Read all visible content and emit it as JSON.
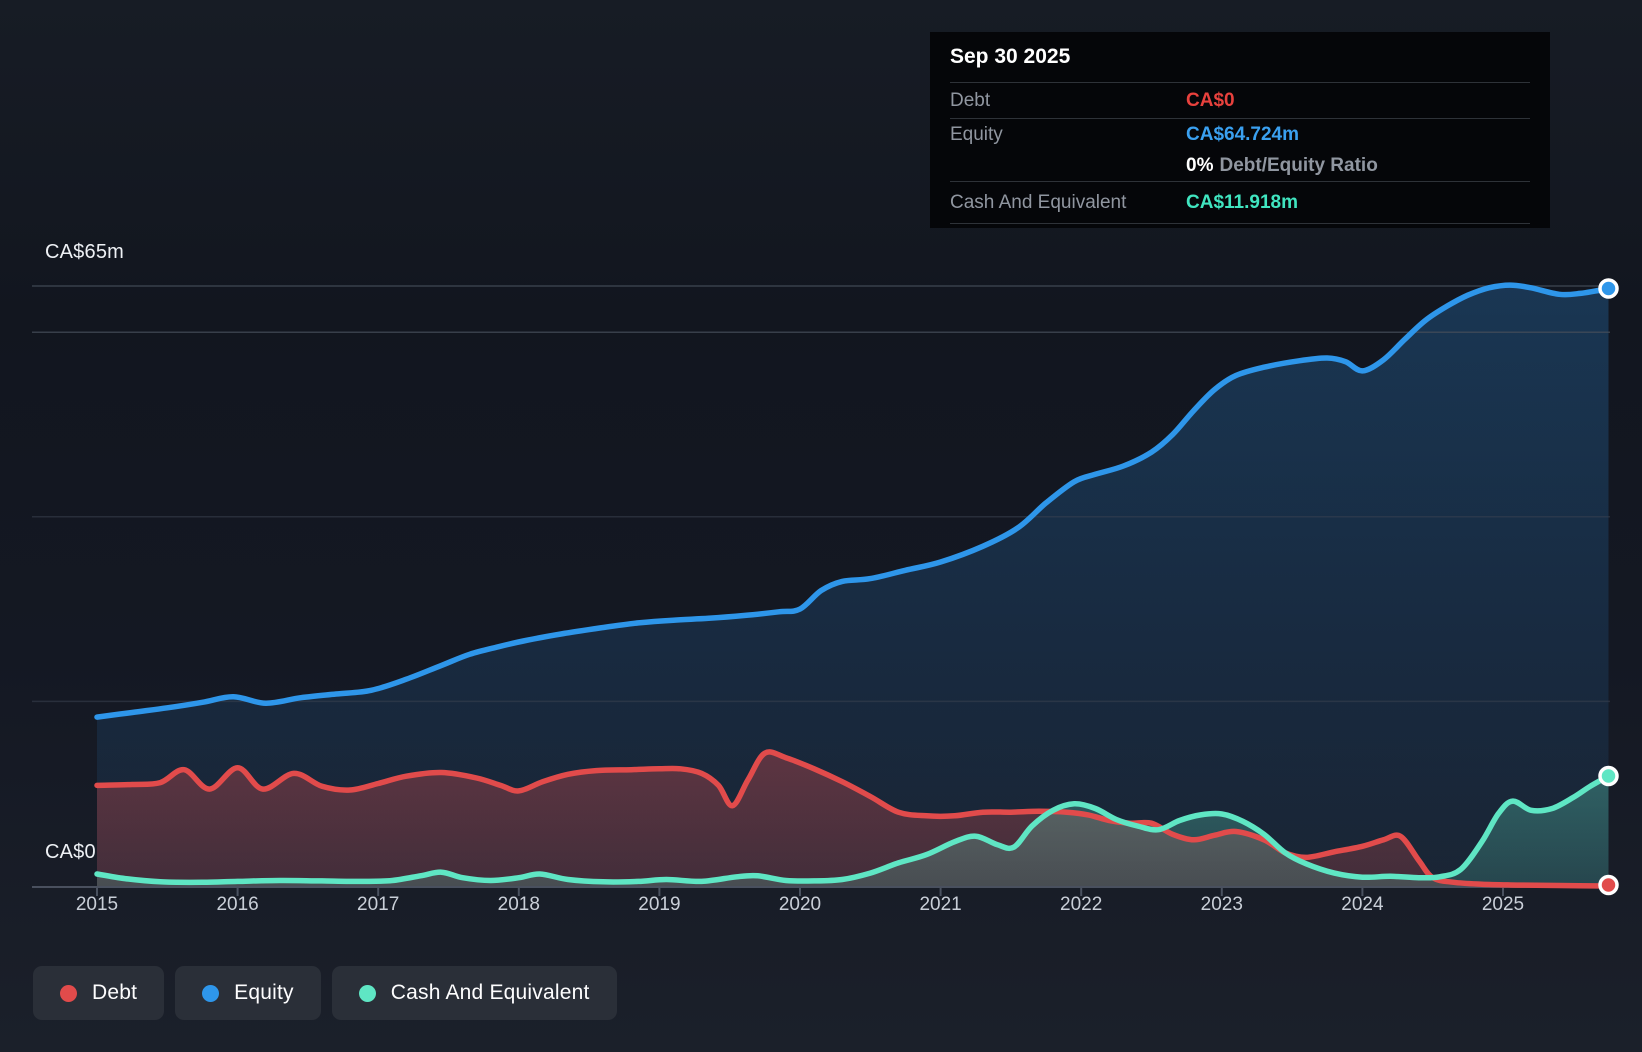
{
  "tooltip": {
    "date": "Sep 30 2025",
    "debt_label": "Debt",
    "debt_value": "CA$0",
    "equity_label": "Equity",
    "equity_value": "CA$64.724m",
    "ratio_value": "0%",
    "ratio_label": "Debt/Equity Ratio",
    "cash_label": "Cash And Equivalent",
    "cash_value": "CA$11.918m"
  },
  "y_axis": {
    "top_label": "CA$65m",
    "bottom_label": "CA$0"
  },
  "x_axis": {
    "years": [
      "2015",
      "2016",
      "2017",
      "2018",
      "2019",
      "2020",
      "2021",
      "2022",
      "2023",
      "2024",
      "2025"
    ]
  },
  "legend": [
    {
      "label": "Debt"
    },
    {
      "label": "Equity"
    },
    {
      "label": "Cash And Equivalent"
    }
  ],
  "colors": {
    "debt": "#e14b4b",
    "equity": "#2e96ea",
    "cash": "#5fe6c4",
    "tooltip_debt": "#e8413d",
    "tooltip_equity": "#3aa0f0",
    "tooltip_cash": "#40e5c0"
  },
  "chart_data": {
    "type": "area",
    "title": "Debt to Equity History",
    "x_unit": "year",
    "xlim": [
      2015,
      2025.75
    ],
    "ylim": [
      0,
      65
    ],
    "y_currency": "CA$m",
    "gridline_values": [
      65,
      60,
      40,
      20
    ],
    "legend_position": "bottom-left",
    "series": [
      {
        "name": "Equity",
        "color": "#2e96ea",
        "end_value_label": "CA$64.724m",
        "points": [
          [
            2015.0,
            18.3
          ],
          [
            2015.25,
            18.8
          ],
          [
            2015.5,
            19.3
          ],
          [
            2015.75,
            19.9
          ],
          [
            2015.97,
            20.5
          ],
          [
            2016.2,
            19.8
          ],
          [
            2016.45,
            20.4
          ],
          [
            2016.7,
            20.8
          ],
          [
            2016.95,
            21.2
          ],
          [
            2017.2,
            22.4
          ],
          [
            2017.45,
            23.9
          ],
          [
            2017.65,
            25.1
          ],
          [
            2017.85,
            25.9
          ],
          [
            2018.05,
            26.6
          ],
          [
            2018.3,
            27.3
          ],
          [
            2018.6,
            28.0
          ],
          [
            2018.85,
            28.5
          ],
          [
            2019.1,
            28.8
          ],
          [
            2019.35,
            29.0
          ],
          [
            2019.6,
            29.3
          ],
          [
            2019.85,
            29.7
          ],
          [
            2020.0,
            30.0
          ],
          [
            2020.15,
            32.0
          ],
          [
            2020.3,
            33.0
          ],
          [
            2020.5,
            33.3
          ],
          [
            2020.75,
            34.2
          ],
          [
            2021.0,
            35.1
          ],
          [
            2021.3,
            36.8
          ],
          [
            2021.55,
            38.8
          ],
          [
            2021.75,
            41.5
          ],
          [
            2021.95,
            43.8
          ],
          [
            2022.1,
            44.6
          ],
          [
            2022.3,
            45.5
          ],
          [
            2022.5,
            47.0
          ],
          [
            2022.65,
            48.9
          ],
          [
            2022.8,
            51.5
          ],
          [
            2022.95,
            53.8
          ],
          [
            2023.1,
            55.3
          ],
          [
            2023.3,
            56.2
          ],
          [
            2023.55,
            56.9
          ],
          [
            2023.75,
            57.2
          ],
          [
            2023.88,
            56.8
          ],
          [
            2024.0,
            55.8
          ],
          [
            2024.15,
            57.0
          ],
          [
            2024.3,
            59.2
          ],
          [
            2024.45,
            61.3
          ],
          [
            2024.6,
            62.8
          ],
          [
            2024.75,
            64.0
          ],
          [
            2024.9,
            64.8
          ],
          [
            2025.05,
            65.1
          ],
          [
            2025.2,
            64.8
          ],
          [
            2025.4,
            64.1
          ],
          [
            2025.55,
            64.2
          ],
          [
            2025.75,
            64.724
          ]
        ]
      },
      {
        "name": "Debt",
        "color": "#e14b4b",
        "end_value_label": "CA$0",
        "points": [
          [
            2015.0,
            10.9
          ],
          [
            2015.25,
            11.0
          ],
          [
            2015.45,
            11.2
          ],
          [
            2015.62,
            12.6
          ],
          [
            2015.8,
            10.5
          ],
          [
            2016.0,
            12.8
          ],
          [
            2016.18,
            10.5
          ],
          [
            2016.4,
            12.2
          ],
          [
            2016.6,
            10.8
          ],
          [
            2016.8,
            10.4
          ],
          [
            2017.0,
            11.1
          ],
          [
            2017.2,
            11.9
          ],
          [
            2017.45,
            12.3
          ],
          [
            2017.7,
            11.7
          ],
          [
            2017.87,
            10.9
          ],
          [
            2018.0,
            10.3
          ],
          [
            2018.17,
            11.3
          ],
          [
            2018.35,
            12.1
          ],
          [
            2018.55,
            12.5
          ],
          [
            2018.8,
            12.6
          ],
          [
            2019.0,
            12.7
          ],
          [
            2019.15,
            12.7
          ],
          [
            2019.3,
            12.2
          ],
          [
            2019.42,
            10.9
          ],
          [
            2019.52,
            8.7
          ],
          [
            2019.63,
            11.5
          ],
          [
            2019.75,
            14.4
          ],
          [
            2019.9,
            13.9
          ],
          [
            2020.1,
            12.7
          ],
          [
            2020.3,
            11.3
          ],
          [
            2020.5,
            9.7
          ],
          [
            2020.7,
            8.0
          ],
          [
            2020.9,
            7.6
          ],
          [
            2021.1,
            7.6
          ],
          [
            2021.3,
            8.0
          ],
          [
            2021.5,
            8.0
          ],
          [
            2021.7,
            8.1
          ],
          [
            2021.9,
            8.0
          ],
          [
            2022.05,
            7.7
          ],
          [
            2022.2,
            7.1
          ],
          [
            2022.35,
            6.8
          ],
          [
            2022.5,
            6.8
          ],
          [
            2022.65,
            5.6
          ],
          [
            2022.8,
            5.0
          ],
          [
            2022.95,
            5.5
          ],
          [
            2023.1,
            5.9
          ],
          [
            2023.3,
            5.0
          ],
          [
            2023.45,
            3.6
          ],
          [
            2023.6,
            3.1
          ],
          [
            2023.8,
            3.7
          ],
          [
            2024.0,
            4.3
          ],
          [
            2024.15,
            5.0
          ],
          [
            2024.27,
            5.4
          ],
          [
            2024.4,
            2.8
          ],
          [
            2024.5,
            0.9
          ],
          [
            2024.65,
            0.4
          ],
          [
            2024.85,
            0.2
          ],
          [
            2025.1,
            0.1
          ],
          [
            2025.4,
            0.05
          ],
          [
            2025.75,
            0
          ]
        ]
      },
      {
        "name": "Cash And Equivalent",
        "color": "#5fe6c4",
        "end_value_label": "CA$11.918m",
        "points": [
          [
            2015.0,
            1.3
          ],
          [
            2015.2,
            0.8
          ],
          [
            2015.45,
            0.45
          ],
          [
            2015.75,
            0.4
          ],
          [
            2016.0,
            0.5
          ],
          [
            2016.3,
            0.6
          ],
          [
            2016.6,
            0.55
          ],
          [
            2016.9,
            0.5
          ],
          [
            2017.1,
            0.6
          ],
          [
            2017.3,
            1.1
          ],
          [
            2017.45,
            1.5
          ],
          [
            2017.6,
            0.9
          ],
          [
            2017.8,
            0.6
          ],
          [
            2018.0,
            0.9
          ],
          [
            2018.15,
            1.3
          ],
          [
            2018.35,
            0.7
          ],
          [
            2018.6,
            0.45
          ],
          [
            2018.85,
            0.5
          ],
          [
            2019.05,
            0.7
          ],
          [
            2019.3,
            0.5
          ],
          [
            2019.55,
            1.0
          ],
          [
            2019.7,
            1.1
          ],
          [
            2019.9,
            0.6
          ],
          [
            2020.1,
            0.55
          ],
          [
            2020.3,
            0.7
          ],
          [
            2020.5,
            1.4
          ],
          [
            2020.7,
            2.5
          ],
          [
            2020.9,
            3.4
          ],
          [
            2021.1,
            4.8
          ],
          [
            2021.25,
            5.4
          ],
          [
            2021.4,
            4.5
          ],
          [
            2021.52,
            4.2
          ],
          [
            2021.65,
            6.5
          ],
          [
            2021.8,
            8.2
          ],
          [
            2021.95,
            8.9
          ],
          [
            2022.1,
            8.4
          ],
          [
            2022.25,
            7.2
          ],
          [
            2022.4,
            6.5
          ],
          [
            2022.55,
            6.1
          ],
          [
            2022.7,
            7.1
          ],
          [
            2022.85,
            7.7
          ],
          [
            2023.0,
            7.8
          ],
          [
            2023.15,
            7.0
          ],
          [
            2023.3,
            5.6
          ],
          [
            2023.45,
            3.6
          ],
          [
            2023.6,
            2.4
          ],
          [
            2023.8,
            1.4
          ],
          [
            2024.0,
            0.95
          ],
          [
            2024.2,
            1.05
          ],
          [
            2024.4,
            0.9
          ],
          [
            2024.55,
            1.0
          ],
          [
            2024.7,
            1.8
          ],
          [
            2024.85,
            4.8
          ],
          [
            2024.97,
            7.9
          ],
          [
            2025.07,
            9.2
          ],
          [
            2025.2,
            8.2
          ],
          [
            2025.35,
            8.4
          ],
          [
            2025.5,
            9.6
          ],
          [
            2025.62,
            10.8
          ],
          [
            2025.75,
            11.918
          ]
        ]
      }
    ]
  }
}
